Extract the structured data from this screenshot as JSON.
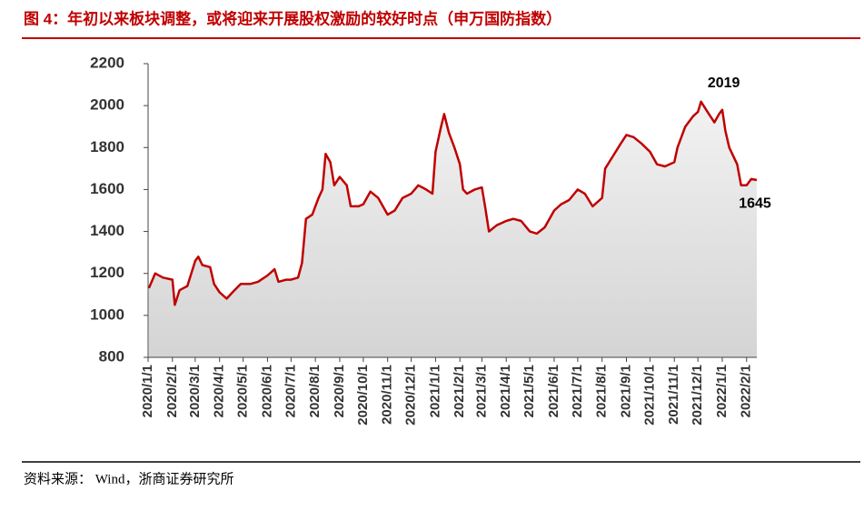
{
  "chart_data": {
    "type": "line",
    "title": "图 4：年初以来板块调整，或将迎来开展股权激励的较好时点（申万国防指数）",
    "source": "资料来源：  Wind，浙商证券研究所",
    "x": [
      "2020/1/2",
      "2020/1/10",
      "2020/1/20",
      "2020/2/1",
      "2020/2/4",
      "2020/2/10",
      "2020/2/20",
      "2020/3/1",
      "2020/3/5",
      "2020/3/10",
      "2020/3/20",
      "2020/3/25",
      "2020/4/1",
      "2020/4/10",
      "2020/4/20",
      "2020/4/28",
      "2020/5/10",
      "2020/5/20",
      "2020/6/1",
      "2020/6/10",
      "2020/6/15",
      "2020/6/25",
      "2020/7/1",
      "2020/7/10",
      "2020/7/15",
      "2020/7/20",
      "2020/7/28",
      "2020/8/5",
      "2020/8/10",
      "2020/8/14",
      "2020/8/20",
      "2020/8/25",
      "2020/9/1",
      "2020/9/10",
      "2020/9/15",
      "2020/9/25",
      "2020/10/1",
      "2020/10/10",
      "2020/10/20",
      "2020/11/1",
      "2020/11/10",
      "2020/11/20",
      "2020/12/1",
      "2020/12/10",
      "2020/12/20",
      "2020/12/28",
      "2021/1/1",
      "2021/1/8",
      "2021/1/12",
      "2021/1/18",
      "2021/1/25",
      "2021/2/1",
      "2021/2/5",
      "2021/2/10",
      "2021/2/20",
      "2021/3/1",
      "2021/3/5",
      "2021/3/10",
      "2021/3/20",
      "2021/4/1",
      "2021/4/10",
      "2021/4/20",
      "2021/5/1",
      "2021/5/10",
      "2021/5/20",
      "2021/6/1",
      "2021/6/10",
      "2021/6/20",
      "2021/7/1",
      "2021/7/10",
      "2021/7/20",
      "2021/8/1",
      "2021/8/5",
      "2021/8/15",
      "2021/8/25",
      "2021/9/1",
      "2021/9/10",
      "2021/9/20",
      "2021/10/1",
      "2021/10/10",
      "2021/10/20",
      "2021/11/1",
      "2021/11/5",
      "2021/11/15",
      "2021/11/25",
      "2021/12/1",
      "2021/12/5",
      "2021/12/15",
      "2021/12/22",
      "2021/12/28",
      "2022/1/1",
      "2022/1/5",
      "2022/1/10",
      "2022/1/20",
      "2022/1/25",
      "2022/2/1",
      "2022/2/7",
      "2022/2/14"
    ],
    "series": [
      {
        "name": "申万国防指数",
        "color": "#c00000",
        "values": [
          1130,
          1200,
          1180,
          1170,
          1050,
          1120,
          1140,
          1260,
          1280,
          1240,
          1230,
          1150,
          1110,
          1080,
          1120,
          1150,
          1150,
          1160,
          1190,
          1220,
          1160,
          1170,
          1170,
          1180,
          1250,
          1460,
          1480,
          1560,
          1600,
          1770,
          1730,
          1620,
          1660,
          1620,
          1520,
          1520,
          1530,
          1590,
          1560,
          1480,
          1500,
          1560,
          1580,
          1620,
          1600,
          1580,
          1780,
          1900,
          1960,
          1870,
          1800,
          1720,
          1600,
          1580,
          1600,
          1610,
          1520,
          1400,
          1430,
          1450,
          1460,
          1450,
          1400,
          1390,
          1420,
          1500,
          1530,
          1550,
          1600,
          1580,
          1520,
          1560,
          1700,
          1760,
          1820,
          1860,
          1850,
          1820,
          1780,
          1720,
          1710,
          1730,
          1800,
          1900,
          1950,
          1970,
          2019,
          1960,
          1920,
          1960,
          1980,
          1880,
          1800,
          1720,
          1620,
          1620,
          1650,
          1645
        ]
      }
    ],
    "annotations": [
      "2019",
      "1645"
    ],
    "xlim": [
      "2020/1/1",
      "2022/2/14"
    ],
    "xticks": [
      "2020/1/1",
      "2020/2/1",
      "2020/3/1",
      "2020/4/1",
      "2020/5/1",
      "2020/6/1",
      "2020/7/1",
      "2020/8/1",
      "2020/9/1",
      "2020/10/1",
      "2020/11/1",
      "2020/12/1",
      "2021/1/1",
      "2021/2/1",
      "2021/3/1",
      "2021/4/1",
      "2021/5/1",
      "2021/6/1",
      "2021/7/1",
      "2021/8/1",
      "2021/9/1",
      "2021/10/1",
      "2021/11/1",
      "2021/12/1",
      "2022/1/1",
      "2022/2/1"
    ],
    "ylim": [
      800,
      2200
    ],
    "yticks": [
      800,
      1000,
      1200,
      1400,
      1600,
      1800,
      2000,
      2200
    ]
  }
}
